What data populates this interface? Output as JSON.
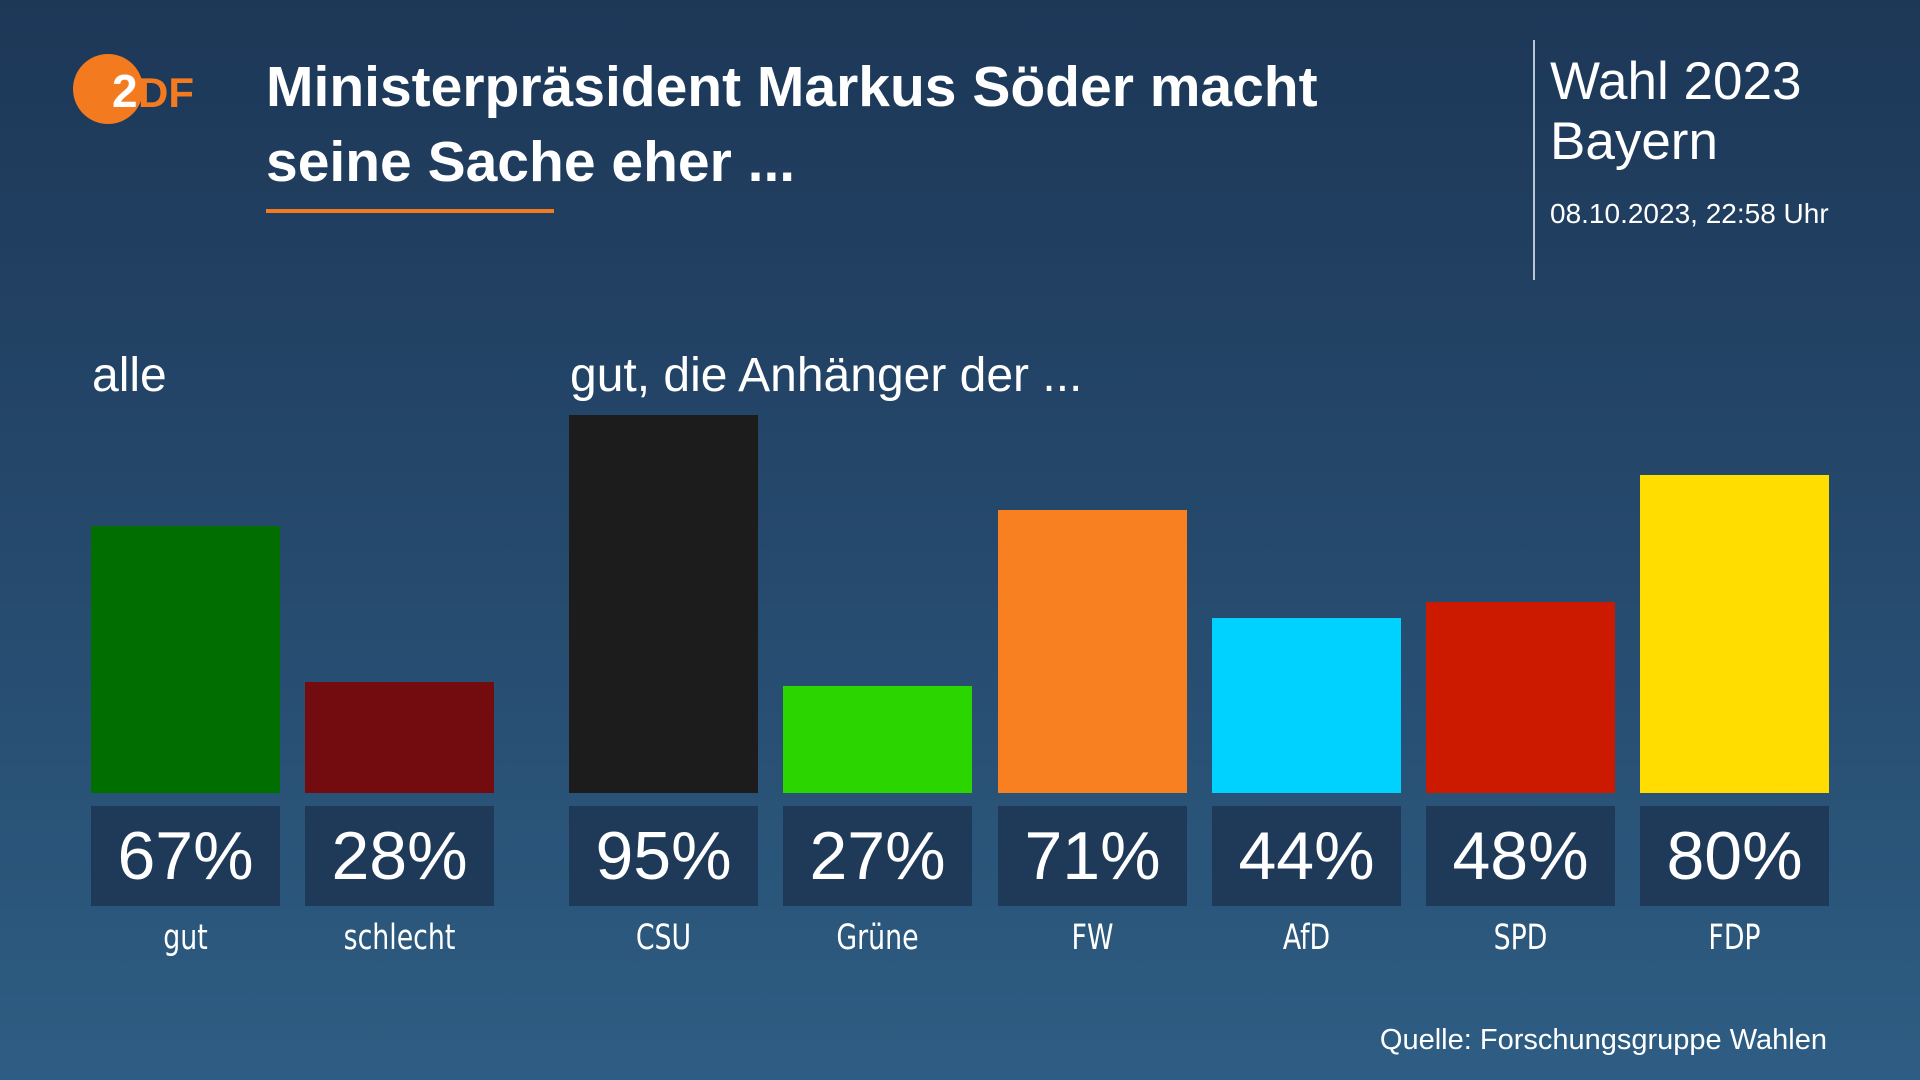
{
  "header": {
    "logo_text": "ZDF",
    "title_line1": "Ministerpräsident Markus Söder macht",
    "title_line2": "seine Sache eher ...",
    "edition_line1": "Wahl 2023",
    "edition_line2": "Bayern",
    "timestamp": "08.10.2023, 22:58 Uhr"
  },
  "source": "Quelle: Forschungsgruppe Wahlen",
  "colors": {
    "accent": "#f47a1f",
    "value_box": "#1f3a59"
  },
  "chart_data": {
    "type": "bar",
    "ylim": [
      0,
      100
    ],
    "grid": false,
    "groups": [
      {
        "label": "alle",
        "categories": [
          "gut",
          "schlecht"
        ],
        "values": [
          67,
          28
        ],
        "value_labels": [
          "67%",
          "28%"
        ],
        "colors": [
          "#006e00",
          "#720c0e"
        ]
      },
      {
        "label": "gut, die Anhänger der ...",
        "categories": [
          "CSU",
          "Grüne",
          "FW",
          "AfD",
          "SPD",
          "FDP"
        ],
        "values": [
          95,
          27,
          71,
          44,
          48,
          80
        ],
        "value_labels": [
          "95%",
          "27%",
          "71%",
          "44%",
          "48%",
          "80%"
        ],
        "colors": [
          "#1c1c1c",
          "#2bd600",
          "#f98020",
          "#00d2ff",
          "#cc1a00",
          "#ffdd00"
        ]
      }
    ]
  }
}
